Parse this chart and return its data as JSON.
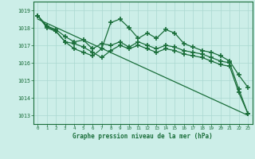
{
  "title": "Graphe pression niveau de la mer (hPa)",
  "bg_color": "#cceee8",
  "grid_color": "#aad8d0",
  "line_color": "#1a6e3a",
  "xlim": [
    -0.5,
    23.5
  ],
  "ylim": [
    1012.5,
    1019.5
  ],
  "yticks": [
    1013,
    1014,
    1015,
    1016,
    1017,
    1018,
    1019
  ],
  "xticks": [
    0,
    1,
    2,
    3,
    4,
    5,
    6,
    7,
    8,
    9,
    10,
    11,
    12,
    13,
    14,
    15,
    16,
    17,
    18,
    19,
    20,
    21,
    22,
    23
  ],
  "series1": [
    1018.7,
    1018.1,
    1017.8,
    1017.2,
    1016.8,
    1016.6,
    1016.4,
    1016.8,
    1018.3,
    1018.5,
    1018.0,
    1017.4,
    1017.7,
    1017.4,
    1017.9,
    1017.7,
    1017.1,
    1016.9,
    1016.7,
    1016.6,
    1016.4,
    1016.1,
    1015.3,
    1014.6
  ],
  "series2": [
    1018.7,
    1018.1,
    1017.9,
    1017.5,
    1017.2,
    1017.3,
    1016.8,
    1017.1,
    1017.0,
    1017.2,
    1016.9,
    1017.2,
    1017.0,
    1016.8,
    1017.0,
    1016.9,
    1016.7,
    1016.6,
    1016.5,
    1016.3,
    1016.1,
    1016.0,
    1014.5,
    1013.1
  ],
  "series3": [
    1018.7,
    1018.0,
    1017.8,
    1017.2,
    1017.1,
    1016.9,
    1016.6,
    1016.3,
    1016.7,
    1017.0,
    1016.8,
    1017.0,
    1016.8,
    1016.6,
    1016.8,
    1016.7,
    1016.5,
    1016.4,
    1016.3,
    1016.1,
    1015.9,
    1015.8,
    1014.3,
    1013.1
  ],
  "trend_x": [
    0,
    23
  ],
  "trend_y": [
    1018.5,
    1013.0
  ]
}
